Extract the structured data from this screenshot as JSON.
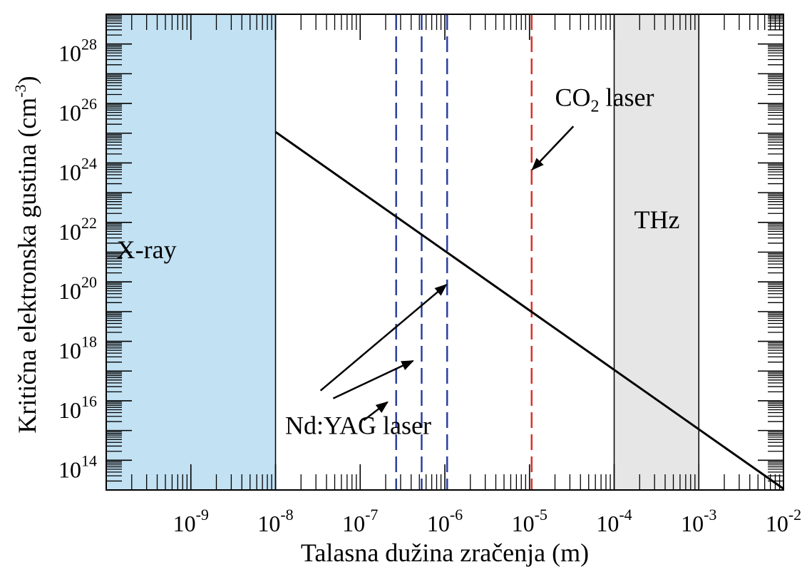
{
  "chart_data": {
    "type": "line",
    "title": "",
    "xlabel": "Talasna dužina zračenja (m)",
    "ylabel": "Kritična elektronska gustina (cm",
    "ylabel_sup": "-3",
    "ylabel_close": ")",
    "xscale": "log",
    "yscale": "log",
    "xlim": [
      1e-10,
      0.01
    ],
    "ylim": [
      10000000000000.0,
      1e+29
    ],
    "x_ticks": [
      {
        "value": 1e-09,
        "base": "10",
        "exp": "-9"
      },
      {
        "value": 1e-08,
        "base": "10",
        "exp": "-8"
      },
      {
        "value": 1e-07,
        "base": "10",
        "exp": "-7"
      },
      {
        "value": 1e-06,
        "base": "10",
        "exp": "-6"
      },
      {
        "value": 1e-05,
        "base": "10",
        "exp": "-5"
      },
      {
        "value": 0.0001,
        "base": "10",
        "exp": "-4"
      },
      {
        "value": 0.001,
        "base": "10",
        "exp": "-3"
      },
      {
        "value": 0.01,
        "base": "10",
        "exp": "-2"
      }
    ],
    "y_ticks": [
      {
        "value": 100000000000000.0,
        "base": "10",
        "exp": "14"
      },
      {
        "value": 1e+16,
        "base": "10",
        "exp": "16"
      },
      {
        "value": 1e+18,
        "base": "10",
        "exp": "18"
      },
      {
        "value": 1e+20,
        "base": "10",
        "exp": "20"
      },
      {
        "value": 1e+22,
        "base": "10",
        "exp": "22"
      },
      {
        "value": 1e+24,
        "base": "10",
        "exp": "24"
      },
      {
        "value": 1e+26,
        "base": "10",
        "exp": "26"
      },
      {
        "value": 1e+28,
        "base": "10",
        "exp": "28"
      }
    ],
    "series": [
      {
        "x": [
          1e-08,
          0.01
        ],
        "y": [
          1.1e+25,
          11000000000000.0
        ],
        "color": "#000000"
      }
    ],
    "regions": [
      {
        "label": "X-ray",
        "x_from": 1e-10,
        "x_to": 1e-08,
        "fill": "#c2e1f2",
        "label_x": 3e-10,
        "label_y": 1e+21
      },
      {
        "label": "THz",
        "x_from": 0.0001,
        "x_to": 0.001,
        "fill": "#e6e6e6",
        "label_x": 0.00032,
        "label_y": 1e+22
      }
    ],
    "vlines": [
      {
        "x": 2.66e-07,
        "color": "#2b3f9e",
        "style": "dashed"
      },
      {
        "x": 5.32e-07,
        "color": "#2b3f9e",
        "style": "dashed"
      },
      {
        "x": 1.064e-06,
        "color": "#2b3f9e",
        "style": "dashed"
      },
      {
        "x": 1.06e-05,
        "color": "#d9312a",
        "style": "dashed"
      }
    ],
    "annotations": [
      {
        "text": "Nd:YAG laser",
        "text_x": 1.3e-08,
        "text_y": 1200000000000000.0,
        "arrows": [
          {
            "from_x": 3.4e-08,
            "from_y": 2.2e+16,
            "to_x": 1.04e-06,
            "to_y": 8e+19
          },
          {
            "from_x": 4.8e-08,
            "from_y": 1.2e+16,
            "to_x": 4.2e-07,
            "to_y": 2.2e+17
          },
          {
            "from_x": 1.1e-07,
            "from_y": 2200000000000000.0,
            "to_x": 2.1e-07,
            "to_y": 9000000000000000.0
          }
        ]
      },
      {
        "text": "CO",
        "text_sub": "2",
        "text_rest": " laser",
        "text_x": 2e-05,
        "text_y": 1.3e+26,
        "arrows": [
          {
            "from_x": 3.3e-05,
            "from_y": 1.7e+25,
            "to_x": 1.08e-05,
            "to_y": 6e+23
          }
        ]
      }
    ],
    "grid": false,
    "legend": "none"
  }
}
